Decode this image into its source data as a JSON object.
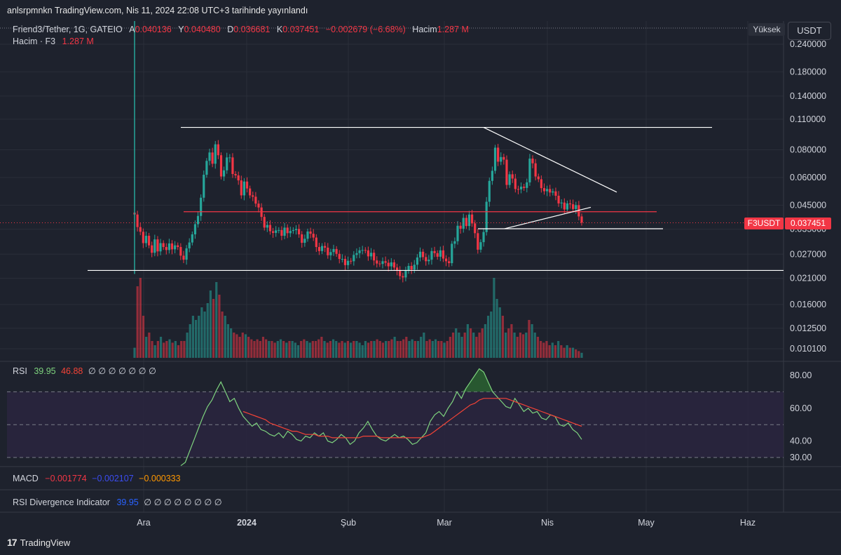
{
  "header": {
    "published": "anlsrpmnkn TradingView.com, Nis 11, 2024 22:08 UTC+3 tarihinde yayınlandı"
  },
  "legend": {
    "symbol": "Friend3/Tether, 1G, GATEIO",
    "o_label": "A",
    "o_val": "0.040136",
    "h_label": "Y",
    "h_val": "0.040480",
    "l_label": "D",
    "l_val": "0.036681",
    "c_label": "K",
    "c_val": "0.037451",
    "change": "−0.002679 (−6.68%)",
    "vol_label": "Hacim",
    "vol_val": "1.287 M",
    "row2_label": "Hacim · F3",
    "row2_val": "1.287 M"
  },
  "badges": {
    "mode": "Yüksek",
    "currency": "USDT",
    "symbol_tag": "F3USDT",
    "last_price": "0.037451"
  },
  "rsi_legend": {
    "name": "RSI",
    "v1": "39.95",
    "v2": "46.88",
    "rest": "∅ ∅ ∅ ∅ ∅ ∅ ∅"
  },
  "macd_legend": {
    "name": "MACD",
    "v1": "−0.001774",
    "v2": "−0.002107",
    "v3": "−0.000333"
  },
  "div_legend": {
    "name": "RSI Divergence Indicator",
    "v1": "39.95",
    "rest": "∅ ∅ ∅ ∅ ∅ ∅ ∅ ∅"
  },
  "footer": {
    "brand": "TradingView"
  },
  "colors": {
    "bg": "#1e222d",
    "up": "#26a69a",
    "down": "#f23645",
    "rsi": "#7ed37e",
    "rsi_ma": "#f44336",
    "band": "#2a2540"
  },
  "chart_data": {
    "type": "candlestick",
    "price_axis": {
      "scale": "log",
      "ticks": [
        "0.240000",
        "0.180000",
        "0.140000",
        "0.110000",
        "0.080000",
        "0.060000",
        "0.045000",
        "0.035000",
        "0.027000",
        "0.021000",
        "0.016000",
        "0.012500",
        "0.010100"
      ]
    },
    "time_axis": {
      "ticks": [
        "Ara",
        "2024",
        "Şub",
        "Mar",
        "Nis",
        "May",
        "Haz"
      ]
    },
    "rsi_axis": {
      "ticks": [
        "80.00",
        "60.00",
        "40.00",
        "30.00"
      ]
    },
    "close_series": [
      0.0408,
      0.0358,
      0.0341,
      0.0303,
      0.0327,
      0.0296,
      0.0274,
      0.0315,
      0.0278,
      0.0303,
      0.0291,
      0.0282,
      0.0302,
      0.0284,
      0.0296,
      0.0291,
      0.0266,
      0.0255,
      0.0287,
      0.0305,
      0.0332,
      0.0369,
      0.0402,
      0.0486,
      0.0617,
      0.0713,
      0.0778,
      0.0692,
      0.0847,
      0.0756,
      0.0606,
      0.0646,
      0.0739,
      0.0739,
      0.0622,
      0.0613,
      0.0582,
      0.0498,
      0.0575,
      0.0535,
      0.0498,
      0.0491,
      0.0457,
      0.0439,
      0.0398,
      0.0356,
      0.0366,
      0.0343,
      0.0337,
      0.0346,
      0.0347,
      0.0327,
      0.0356,
      0.0336,
      0.0344,
      0.0347,
      0.0351,
      0.0332,
      0.0304,
      0.0317,
      0.0342,
      0.0334,
      0.0321,
      0.0291,
      0.0279,
      0.0294,
      0.0289,
      0.0267,
      0.0276,
      0.0285,
      0.0271,
      0.0257,
      0.0257,
      0.0241,
      0.0252,
      0.0251,
      0.0268,
      0.0273,
      0.0281,
      0.0282,
      0.0281,
      0.0264,
      0.0274,
      0.0253,
      0.0245,
      0.0244,
      0.0251,
      0.0247,
      0.0238,
      0.0248,
      0.0235,
      0.0227,
      0.0215,
      0.0212,
      0.0227,
      0.0239,
      0.023,
      0.0242,
      0.0261,
      0.0277,
      0.0262,
      0.0251,
      0.0255,
      0.0279,
      0.0273,
      0.0263,
      0.0281,
      0.0258,
      0.0251,
      0.0246,
      0.0301,
      0.0309,
      0.0363,
      0.0352,
      0.0394,
      0.0362,
      0.0408,
      0.0372,
      0.0336,
      0.0283,
      0.0306,
      0.034,
      0.0466,
      0.0579,
      0.0643,
      0.0818,
      0.0707,
      0.0742,
      0.0722,
      0.0555,
      0.062,
      0.0593,
      0.0532,
      0.053,
      0.0545,
      0.0538,
      0.057,
      0.073,
      0.0695,
      0.0606,
      0.0589,
      0.0537,
      0.052,
      0.0532,
      0.0513,
      0.0519,
      0.0496,
      0.0458,
      0.0462,
      0.043,
      0.0458,
      0.0454,
      0.0432,
      0.045,
      0.04,
      0.0375
    ],
    "volume_relative": [
      0.12,
      0.85,
      0.95,
      0.5,
      0.25,
      0.3,
      0.2,
      0.15,
      0.2,
      0.25,
      0.18,
      0.2,
      0.22,
      0.18,
      0.2,
      0.15,
      0.2,
      0.2,
      0.3,
      0.4,
      0.5,
      0.45,
      0.5,
      0.6,
      0.55,
      0.65,
      0.8,
      0.7,
      0.9,
      0.75,
      0.55,
      0.5,
      0.4,
      0.35,
      0.3,
      0.28,
      0.25,
      0.3,
      0.28,
      0.25,
      0.22,
      0.2,
      0.22,
      0.2,
      0.25,
      0.22,
      0.2,
      0.2,
      0.18,
      0.2,
      0.22,
      0.2,
      0.18,
      0.2,
      0.2,
      0.18,
      0.15,
      0.2,
      0.22,
      0.2,
      0.18,
      0.2,
      0.2,
      0.22,
      0.25,
      0.2,
      0.18,
      0.2,
      0.22,
      0.2,
      0.18,
      0.2,
      0.18,
      0.2,
      0.18,
      0.2,
      0.2,
      0.18,
      0.15,
      0.2,
      0.18,
      0.2,
      0.2,
      0.22,
      0.2,
      0.18,
      0.2,
      0.2,
      0.22,
      0.25,
      0.2,
      0.2,
      0.22,
      0.25,
      0.2,
      0.22,
      0.2,
      0.2,
      0.25,
      0.3,
      0.2,
      0.22,
      0.2,
      0.22,
      0.2,
      0.2,
      0.18,
      0.2,
      0.25,
      0.3,
      0.35,
      0.3,
      0.25,
      0.3,
      0.4,
      0.35,
      0.3,
      0.25,
      0.3,
      0.35,
      0.4,
      0.5,
      0.55,
      0.95,
      0.7,
      0.6,
      0.5,
      0.3,
      0.35,
      0.4,
      0.3,
      0.25,
      0.3,
      0.28,
      0.3,
      0.45,
      0.4,
      0.3,
      0.25,
      0.2,
      0.18,
      0.2,
      0.15,
      0.18,
      0.15,
      0.2,
      0.15,
      0.12,
      0.15,
      0.12,
      0.12,
      0.1,
      0.08,
      0.06
    ],
    "rsi_series": [
      25,
      27,
      34,
      41,
      48,
      55,
      61,
      65,
      71,
      76,
      70,
      64,
      66,
      60,
      55,
      52,
      49,
      51,
      47,
      46,
      44,
      43,
      45,
      42,
      46,
      44,
      41,
      40,
      43,
      42,
      45,
      43,
      45,
      40,
      39,
      41,
      44,
      42,
      38,
      40,
      45,
      48,
      52,
      47,
      43,
      41,
      40,
      42,
      44,
      42,
      43,
      41,
      38,
      39,
      42,
      45,
      52,
      56,
      58,
      55,
      60,
      64,
      70,
      66,
      72,
      76,
      80,
      84,
      82,
      76,
      70,
      67,
      64,
      61,
      60,
      66,
      62,
      58,
      60,
      57,
      58,
      54,
      53,
      56,
      55,
      50,
      49,
      51,
      47,
      45,
      41
    ],
    "rsi_ma_series": [
      null,
      null,
      null,
      null,
      null,
      null,
      null,
      null,
      null,
      null,
      null,
      null,
      null,
      null,
      58,
      57,
      56,
      55,
      54,
      53,
      51,
      50,
      49,
      48,
      47,
      46,
      46,
      45,
      44,
      44,
      44,
      43,
      43,
      43,
      42,
      42,
      42,
      42,
      42,
      42,
      42,
      43,
      43,
      43,
      43,
      42,
      42,
      42,
      42,
      42,
      42,
      42,
      42,
      42,
      42,
      43,
      44,
      46,
      48,
      50,
      52,
      54,
      56,
      58,
      60,
      62,
      63,
      65,
      66,
      66,
      66,
      66,
      66,
      66,
      65,
      64,
      63,
      62,
      61,
      60,
      59,
      58,
      57,
      56,
      55,
      54,
      53,
      52,
      51,
      50,
      49
    ]
  }
}
